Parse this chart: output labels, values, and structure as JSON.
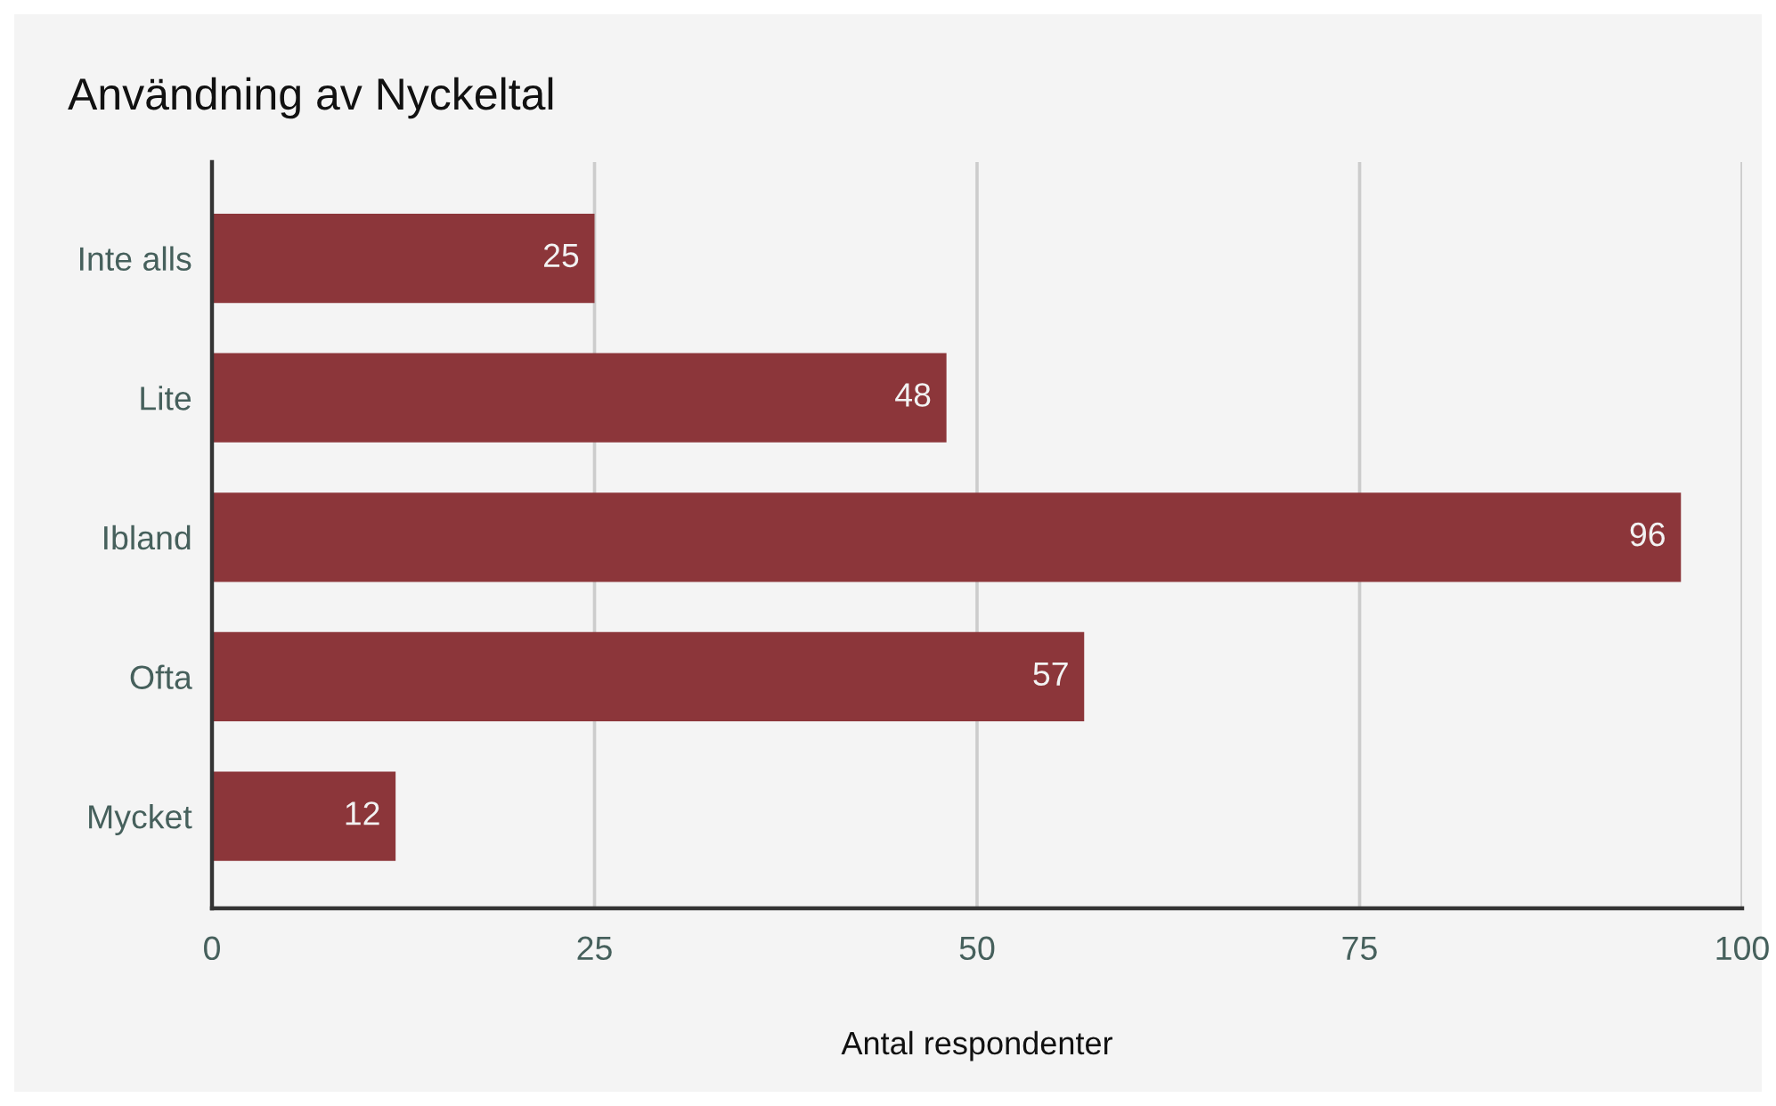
{
  "chart_data": {
    "type": "bar",
    "orientation": "horizontal",
    "title": "Användning av Nyckeltal",
    "xlabel": "Antal respondenter",
    "categories": [
      "Inte alls",
      "Lite",
      "Ibland",
      "Ofta",
      "Mycket"
    ],
    "values": [
      25,
      48,
      96,
      57,
      12
    ],
    "color": "#8c363a",
    "xlim": [
      0,
      100
    ],
    "xticks": [
      0,
      25,
      50,
      75,
      100
    ],
    "grid": "x",
    "data_labels": true
  }
}
